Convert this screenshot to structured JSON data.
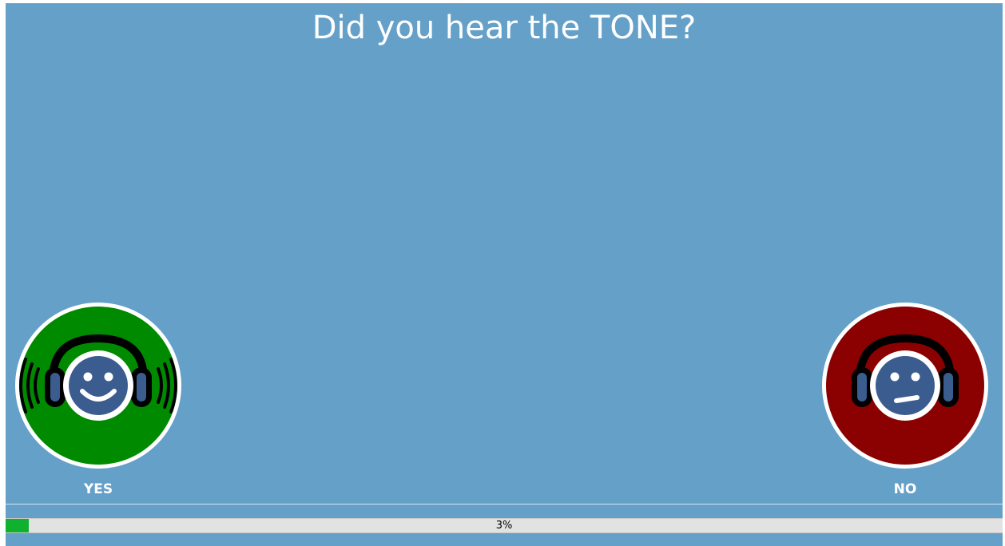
{
  "prompt": {
    "title": "Did you hear the TONE?"
  },
  "answers": {
    "yes": {
      "label": "YES",
      "icon": "headphones-smiling-face-icon",
      "color": "#008a00"
    },
    "no": {
      "label": "NO",
      "icon": "headphones-neutral-face-icon",
      "color": "#8b0000"
    }
  },
  "progress": {
    "percent": 3,
    "text": "3%",
    "color": "#10b12e"
  },
  "colors": {
    "background": "#65a0c9",
    "face": "#3b5c8f"
  }
}
